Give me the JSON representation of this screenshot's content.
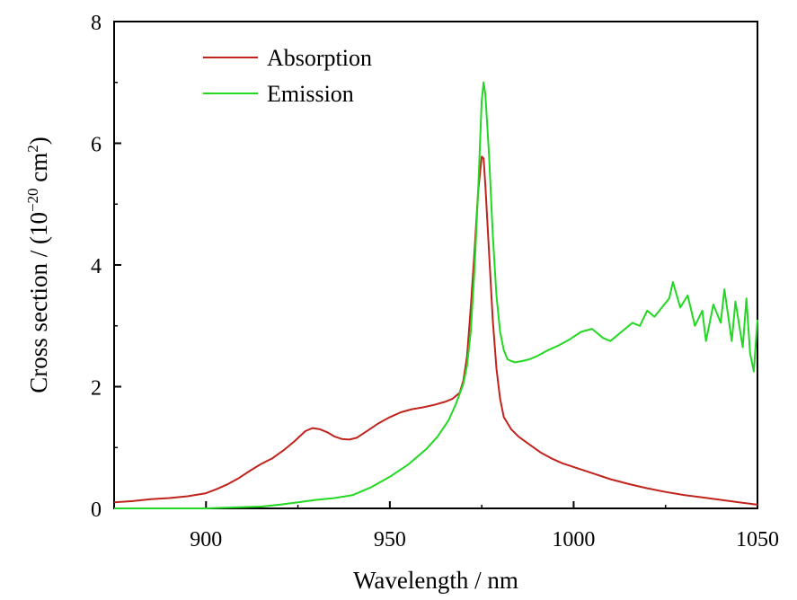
{
  "chart_data": {
    "type": "line",
    "xlabel": "Wavelength / nm",
    "ylabel_text": "Cross section / (10",
    "ylabel_exp": "−20",
    "ylabel_unit": " cm",
    "ylabel_unit_exp": "2",
    "ylabel_close": ")",
    "xlim": [
      875,
      1050
    ],
    "ylim": [
      0,
      8
    ],
    "xticks": [
      900,
      950,
      1000,
      1050
    ],
    "yticks": [
      0,
      2,
      4,
      6,
      8
    ],
    "grid": false,
    "legend_position": "top-left",
    "series": [
      {
        "name": "Absorption",
        "color": "#c0231c",
        "x": [
          875,
          880,
          885,
          890,
          895,
          900,
          903,
          906,
          909,
          912,
          915,
          918,
          921,
          924,
          927,
          929,
          931,
          933,
          935,
          937,
          939,
          941,
          944,
          947,
          950,
          953,
          956,
          959,
          962,
          965,
          967,
          969,
          970,
          971,
          972,
          973,
          974,
          975,
          975.5,
          976,
          977,
          978,
          979,
          980,
          981,
          983,
          985,
          988,
          991,
          994,
          997,
          1000,
          1005,
          1010,
          1015,
          1020,
          1025,
          1030,
          1035,
          1040,
          1045,
          1050
        ],
        "y": [
          0.1,
          0.12,
          0.15,
          0.17,
          0.2,
          0.25,
          0.32,
          0.4,
          0.5,
          0.62,
          0.73,
          0.82,
          0.95,
          1.1,
          1.27,
          1.32,
          1.3,
          1.25,
          1.18,
          1.14,
          1.13,
          1.16,
          1.28,
          1.4,
          1.5,
          1.58,
          1.63,
          1.66,
          1.7,
          1.75,
          1.8,
          1.9,
          2.1,
          2.5,
          3.3,
          4.2,
          5.2,
          5.78,
          5.75,
          5.3,
          4.2,
          3.1,
          2.3,
          1.8,
          1.5,
          1.3,
          1.18,
          1.05,
          0.92,
          0.82,
          0.74,
          0.68,
          0.58,
          0.48,
          0.4,
          0.33,
          0.27,
          0.22,
          0.18,
          0.14,
          0.1,
          0.06
        ]
      },
      {
        "name": "Emission",
        "color": "#22d822",
        "x": [
          875,
          900,
          905,
          910,
          915,
          920,
          925,
          930,
          935,
          940,
          945,
          950,
          955,
          960,
          963,
          966,
          968,
          970,
          971,
          972,
          973,
          974,
          975,
          975.5,
          976,
          977,
          978,
          979,
          980,
          981,
          982,
          983,
          984,
          986,
          988,
          990,
          993,
          996,
          999,
          1002,
          1005,
          1008,
          1010,
          1013,
          1016,
          1018,
          1020,
          1022,
          1024,
          1026,
          1027,
          1029,
          1031,
          1033,
          1035,
          1036,
          1038,
          1040,
          1041,
          1043,
          1044,
          1046,
          1047,
          1048,
          1049,
          1050
        ],
        "y": [
          0,
          0,
          0.01,
          0.02,
          0.03,
          0.06,
          0.1,
          0.14,
          0.17,
          0.22,
          0.35,
          0.52,
          0.72,
          0.98,
          1.18,
          1.45,
          1.72,
          2.05,
          2.35,
          2.9,
          3.9,
          5.2,
          6.7,
          7.0,
          6.8,
          5.8,
          4.5,
          3.5,
          2.9,
          2.6,
          2.45,
          2.42,
          2.4,
          2.42,
          2.45,
          2.5,
          2.6,
          2.68,
          2.78,
          2.9,
          2.95,
          2.8,
          2.75,
          2.9,
          3.05,
          3.0,
          3.25,
          3.15,
          3.3,
          3.45,
          3.72,
          3.3,
          3.5,
          3.0,
          3.25,
          2.75,
          3.35,
          3.05,
          3.6,
          2.75,
          3.4,
          2.65,
          3.45,
          2.55,
          2.25,
          3.1
        ]
      }
    ]
  }
}
